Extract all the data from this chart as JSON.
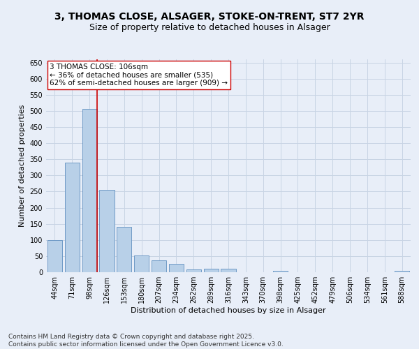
{
  "title_line1": "3, THOMAS CLOSE, ALSAGER, STOKE-ON-TRENT, ST7 2YR",
  "title_line2": "Size of property relative to detached houses in Alsager",
  "xlabel": "Distribution of detached houses by size in Alsager",
  "ylabel": "Number of detached properties",
  "categories": [
    "44sqm",
    "71sqm",
    "98sqm",
    "126sqm",
    "153sqm",
    "180sqm",
    "207sqm",
    "234sqm",
    "262sqm",
    "289sqm",
    "316sqm",
    "343sqm",
    "370sqm",
    "398sqm",
    "425sqm",
    "452sqm",
    "479sqm",
    "506sqm",
    "534sqm",
    "561sqm",
    "588sqm"
  ],
  "values": [
    100,
    340,
    507,
    255,
    140,
    53,
    37,
    25,
    8,
    11,
    10,
    0,
    0,
    5,
    0,
    0,
    0,
    0,
    0,
    0,
    4
  ],
  "bar_color": "#b8d0e8",
  "bar_edge_color": "#6090c0",
  "annotation_text_line1": "3 THOMAS CLOSE: 106sqm",
  "annotation_text_line2": "← 36% of detached houses are smaller (535)",
  "annotation_text_line3": "62% of semi-detached houses are larger (909) →",
  "vline_color": "#cc0000",
  "annotation_box_facecolor": "#ffffff",
  "annotation_box_edgecolor": "#cc0000",
  "ylim": [
    0,
    660
  ],
  "yticks": [
    0,
    50,
    100,
    150,
    200,
    250,
    300,
    350,
    400,
    450,
    500,
    550,
    600,
    650
  ],
  "grid_color": "#c8d4e4",
  "background_color": "#e8eef8",
  "footnote_line1": "Contains HM Land Registry data © Crown copyright and database right 2025.",
  "footnote_line2": "Contains public sector information licensed under the Open Government Licence v3.0.",
  "title_fontsize": 10,
  "subtitle_fontsize": 9,
  "axis_label_fontsize": 8,
  "tick_fontsize": 7,
  "annotation_fontsize": 7.5,
  "footnote_fontsize": 6.5,
  "vline_x_index": 2.43
}
